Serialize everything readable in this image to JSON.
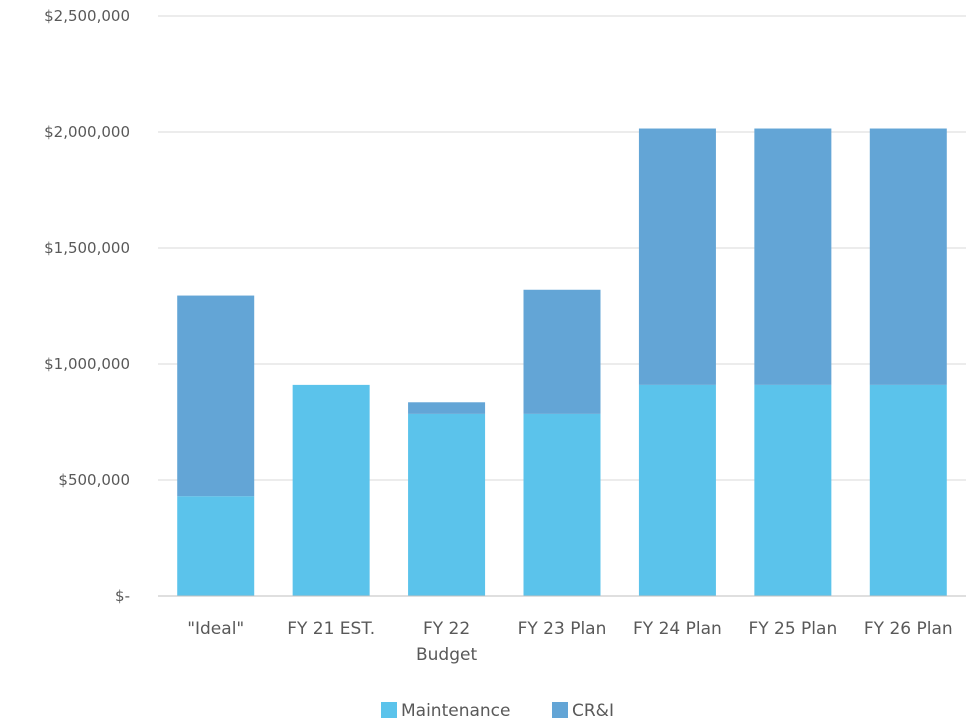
{
  "chart_data": {
    "type": "bar",
    "stacked": true,
    "categories": [
      [
        "\"Ideal\""
      ],
      [
        "FY 21 EST."
      ],
      [
        "FY 22",
        "Budget"
      ],
      [
        "FY 23 Plan"
      ],
      [
        "FY 24 Plan"
      ],
      [
        "FY 25 Plan"
      ],
      [
        "FY 26 Plan"
      ]
    ],
    "series": [
      {
        "name": "Maintenance",
        "color": "#5BC3EB",
        "values": [
          430000,
          910000,
          785000,
          785000,
          910000,
          910000,
          910000
        ]
      },
      {
        "name": "CR&I",
        "color": "#63A5D6",
        "values": [
          865000,
          0,
          50000,
          535000,
          1105000,
          1105000,
          1105000
        ]
      }
    ],
    "ylim": [
      0,
      2500000
    ],
    "yticks": [
      0,
      500000,
      1000000,
      1500000,
      2000000,
      2500000
    ],
    "ytick_labels": [
      "$-",
      "$500,000",
      "$1,000,000",
      "$1,500,000",
      "$2,000,000",
      "$2,500,000"
    ],
    "grid": true,
    "gridline_color": "#D9D9D9",
    "legend_position": "bottom",
    "title": "",
    "xlabel": "",
    "ylabel": ""
  }
}
